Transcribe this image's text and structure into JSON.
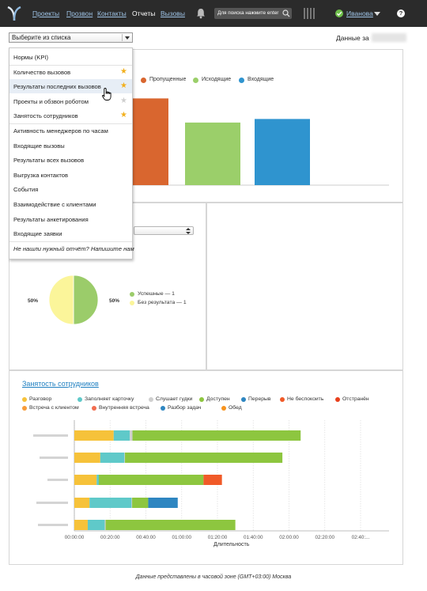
{
  "nav": {
    "items": [
      {
        "label": "Проекты",
        "active": false
      },
      {
        "label": "Прозвон",
        "active": false
      },
      {
        "label": "Контакты",
        "active": false
      },
      {
        "label": "Отчеты",
        "active": true
      },
      {
        "label": "Вызовы",
        "active": false
      }
    ],
    "search_placeholder": "Для поиска нажмите enter",
    "user_name": "Иванова",
    "help_glyph": "?"
  },
  "report_select": {
    "value": "Выберите из списка"
  },
  "data_for_label": "Данные за",
  "report_menu": {
    "items": [
      {
        "label": "Нормы (KPI)",
        "star": "none"
      },
      {
        "label": "Количество вызовов",
        "star": "on"
      },
      {
        "label": "Результаты последних вызовов",
        "star": "on"
      },
      {
        "label": "Проекты и обзвон роботом",
        "star": "off"
      },
      {
        "label": "Занятость сотрудников",
        "star": "on"
      },
      {
        "label": "Активность менеджеров по часам",
        "star": "none"
      },
      {
        "label": "Входящие вызовы",
        "star": "none"
      },
      {
        "label": "Результаты всех вызовов",
        "star": "none"
      },
      {
        "label": "Выгрузка контактов",
        "star": "none"
      },
      {
        "label": "События",
        "star": "none"
      },
      {
        "label": "Взаимодействие с клиентами",
        "star": "none"
      },
      {
        "label": "Результаты анкетирования",
        "star": "none"
      },
      {
        "label": "Входящие заявки",
        "star": "none"
      },
      {
        "label": "Не нашли нужный отчёт? Напишите нам",
        "star": "none"
      }
    ],
    "hovered_index": 2
  },
  "calls_chart": {
    "legend": [
      {
        "label": "Пропущенные",
        "color": "#d9662f"
      },
      {
        "label": "Исходящие",
        "color": "#9bcf6a"
      },
      {
        "label": "Входящие",
        "color": "#2f94cf"
      }
    ]
  },
  "pie_chart": {
    "left_pct_label": "50%",
    "right_pct_label": "50%",
    "legend": [
      {
        "label": "Успешные — 1",
        "color": "#9bcc6a"
      },
      {
        "label": "Без результата — 1",
        "color": "#fbf59a"
      }
    ]
  },
  "employment": {
    "title": "Занятость сотрудников",
    "legend": [
      {
        "label": "Разговор",
        "color": "#f6c23a"
      },
      {
        "label": "Заполняет карточку",
        "color": "#5fc9c9"
      },
      {
        "label": "Слушает гудки",
        "color": "#cfcfcf"
      },
      {
        "label": "Доступен",
        "color": "#8dc63f"
      },
      {
        "label": "Перерыв",
        "color": "#2e86c1"
      },
      {
        "label": "Не беспокоить",
        "color": "#f05a28"
      },
      {
        "label": "Отстранён",
        "color": "#e8401c"
      },
      {
        "label": "Встреча с клиентом",
        "color": "#f89c3a"
      },
      {
        "label": "Внутренняя встреча",
        "color": "#f26d4f"
      },
      {
        "label": "Разбор задач",
        "color": "#2e86c1"
      },
      {
        "label": "Обед",
        "color": "#f7931e"
      }
    ],
    "x_label": "Длительность"
  },
  "chart_data": [
    {
      "type": "bar",
      "categories": [
        ""
      ],
      "series": [
        {
          "name": "Пропущенные",
          "values": [
            0.97
          ]
        },
        {
          "name": "Исходящие",
          "values": [
            0.7
          ]
        },
        {
          "name": "Входящие",
          "values": [
            0.74
          ]
        }
      ]
    },
    {
      "type": "pie",
      "slices": [
        {
          "label": "Успешные — 1",
          "value": 1,
          "percent": "50%",
          "color": "#9bcc6a"
        },
        {
          "label": "Без результата — 1",
          "value": 1,
          "percent": "50%",
          "color": "#fbf59a"
        }
      ]
    },
    {
      "type": "bar",
      "orientation": "horizontal",
      "stacked": true,
      "title": "Занятость сотрудников",
      "xlabel": "Длительность",
      "x_ticks": [
        "00:00:00",
        "00:20:00",
        "00:40:00",
        "01:00:00",
        "01:20:00",
        "01:40:00",
        "02:00:00",
        "02:20:00",
        "02:40:..."
      ],
      "x_unit": "minutes",
      "xlim": [
        0,
        160
      ],
      "rows": [
        {
          "segments": [
            {
              "status": "Разговор",
              "color": "#f6c23a",
              "value": 22
            },
            {
              "status": "Заполняет карточку",
              "color": "#5fc9c9",
              "value": 9
            },
            {
              "status": "Слушает гудки",
              "color": "#cfcfcf",
              "value": 1.5
            },
            {
              "status": "Доступен",
              "color": "#8dc63f",
              "value": 94
            }
          ]
        },
        {
          "segments": [
            {
              "status": "Разговор",
              "color": "#f6c23a",
              "value": 14.5
            },
            {
              "status": "Заполняет карточку",
              "color": "#5fc9c9",
              "value": 13.5
            },
            {
              "status": "Слушает гудки",
              "color": "#cfcfcf",
              "value": 0.3
            },
            {
              "status": "Доступен",
              "color": "#8dc63f",
              "value": 88
            }
          ]
        },
        {
          "segments": [
            {
              "status": "Разговор",
              "color": "#f6c23a",
              "value": 12.5
            },
            {
              "status": "Заполняет карточку",
              "color": "#5fc9c9",
              "value": 1.2
            },
            {
              "status": "Доступен",
              "color": "#8dc63f",
              "value": 58.5
            },
            {
              "status": "Не беспокоить",
              "color": "#f05a28",
              "value": 10.3
            }
          ]
        },
        {
          "segments": [
            {
              "status": "Разговор",
              "color": "#f6c23a",
              "value": 8.5
            },
            {
              "status": "Заполняет карточку",
              "color": "#5fc9c9",
              "value": 23.5
            },
            {
              "status": "Слушает гудки",
              "color": "#cfcfcf",
              "value": 0.3
            },
            {
              "status": "Доступен",
              "color": "#8dc63f",
              "value": 9
            },
            {
              "status": "Перерыв",
              "color": "#2e86c1",
              "value": 16.5
            }
          ]
        },
        {
          "segments": [
            {
              "status": "Разговор",
              "color": "#f6c23a",
              "value": 7.5
            },
            {
              "status": "Заполняет карточку",
              "color": "#5fc9c9",
              "value": 9.5
            },
            {
              "status": "Слушает гудки",
              "color": "#cfcfcf",
              "value": 0.5
            },
            {
              "status": "Доступен",
              "color": "#8dc63f",
              "value": 72.5
            }
          ]
        }
      ]
    }
  ],
  "footnote": "Данные представлены в часовой зоне (GMT+03:00) Москва"
}
